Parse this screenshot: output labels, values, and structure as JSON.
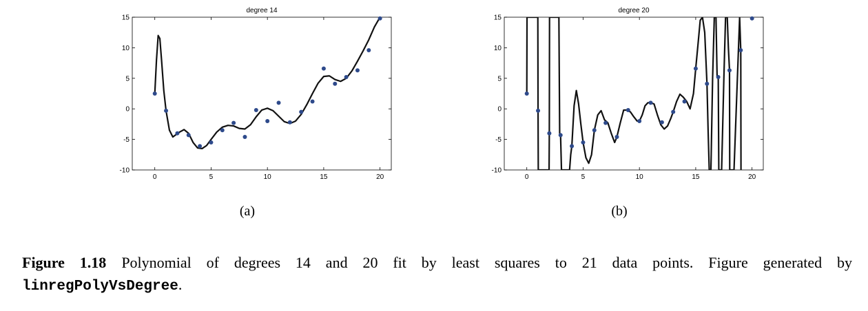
{
  "chart_data": [
    {
      "type": "line",
      "title": "degree 14",
      "xlim": [
        -2,
        21
      ],
      "ylim": [
        -10,
        15
      ],
      "xticks": [
        0,
        5,
        10,
        15,
        20
      ],
      "yticks": [
        -10,
        -5,
        0,
        5,
        10,
        15
      ],
      "grid": false,
      "data_points": {
        "x": [
          0,
          1,
          2,
          3,
          4,
          5,
          6,
          7,
          8,
          9,
          10,
          11,
          12,
          13,
          14,
          15,
          16,
          17,
          18,
          19,
          20
        ],
        "y": [
          2.5,
          -0.3,
          -4.0,
          -4.3,
          -6.1,
          -5.5,
          -3.5,
          -2.3,
          -4.6,
          -0.2,
          -2.0,
          1.0,
          -2.2,
          -0.5,
          1.2,
          6.6,
          4.1,
          5.2,
          6.3,
          9.6,
          14.8
        ]
      },
      "fit_curve": {
        "x": [
          0,
          0.15,
          0.3,
          0.45,
          0.6,
          0.8,
          1.0,
          1.3,
          1.6,
          1.9,
          2.2,
          2.6,
          3.0,
          3.4,
          3.8,
          4.2,
          4.6,
          5.0,
          5.5,
          6.0,
          6.5,
          7.0,
          7.5,
          8.0,
          8.5,
          9.0,
          9.5,
          10.0,
          10.5,
          11.0,
          11.5,
          12.0,
          12.5,
          13.0,
          13.5,
          14.0,
          14.5,
          15.0,
          15.5,
          16.0,
          16.5,
          17.0,
          17.5,
          18.0,
          18.5,
          19.0,
          19.5,
          20.0
        ],
        "y": [
          2.5,
          8.0,
          12.0,
          11.5,
          8.0,
          3.0,
          -0.3,
          -3.5,
          -4.6,
          -4.2,
          -3.8,
          -3.4,
          -4.0,
          -5.5,
          -6.4,
          -6.5,
          -6.0,
          -5.0,
          -3.8,
          -3.0,
          -2.7,
          -2.8,
          -3.2,
          -3.3,
          -2.6,
          -1.3,
          -0.2,
          0.1,
          -0.3,
          -1.2,
          -2.1,
          -2.4,
          -2.0,
          -0.9,
          0.7,
          2.5,
          4.2,
          5.3,
          5.4,
          4.8,
          4.5,
          5.0,
          6.2,
          7.8,
          9.5,
          11.3,
          13.4,
          15.0
        ]
      }
    },
    {
      "type": "line",
      "title": "degree 20",
      "xlim": [
        -2,
        21
      ],
      "ylim": [
        -10,
        15
      ],
      "xticks": [
        0,
        5,
        10,
        15,
        20
      ],
      "yticks": [
        -10,
        -5,
        0,
        5,
        10,
        15
      ],
      "grid": false,
      "data_points": {
        "x": [
          0,
          1,
          2,
          3,
          4,
          5,
          6,
          7,
          8,
          9,
          10,
          11,
          12,
          13,
          14,
          15,
          16,
          17,
          18,
          19,
          20
        ],
        "y": [
          2.5,
          -0.3,
          -4.0,
          -4.3,
          -6.1,
          -5.5,
          -3.5,
          -2.3,
          -4.6,
          -0.2,
          -2.0,
          1.0,
          -2.2,
          -0.5,
          1.2,
          6.6,
          4.1,
          5.2,
          6.3,
          9.6,
          14.8
        ]
      },
      "fit_curve": {
        "x": [
          0,
          0.02,
          0.98,
          1.0,
          1.02,
          1.98,
          2.0,
          2.02,
          2.85,
          2.92,
          3.0,
          3.08,
          3.8,
          3.9,
          4.0,
          4.2,
          4.4,
          4.6,
          4.8,
          5.0,
          5.25,
          5.5,
          5.75,
          6.0,
          6.3,
          6.6,
          6.9,
          7.2,
          7.5,
          7.8,
          8.0,
          8.3,
          8.6,
          8.9,
          9.2,
          9.5,
          9.8,
          10.0,
          10.25,
          10.5,
          10.75,
          11.0,
          11.3,
          11.6,
          11.9,
          12.2,
          12.5,
          12.8,
          13.0,
          13.3,
          13.6,
          13.9,
          14.2,
          14.5,
          14.8,
          15.0,
          15.2,
          15.4,
          15.6,
          15.8,
          16.0,
          16.1,
          16.2,
          16.35,
          16.5,
          16.65,
          16.8,
          16.9,
          17.0,
          17.05,
          17.1,
          17.3,
          17.5,
          17.65,
          17.8,
          17.9,
          18.0,
          18.02,
          18.1,
          18.4,
          18.7,
          18.9,
          19.0,
          19.02
        ],
        "y": [
          2.5,
          15,
          15,
          -0.3,
          -10,
          -10,
          -4.0,
          15,
          15,
          -4.0,
          -4.3,
          -10,
          -10,
          -7.5,
          -6.1,
          0.5,
          3.0,
          0.8,
          -2.5,
          -5.5,
          -8.0,
          -8.9,
          -7.5,
          -3.5,
          -1.0,
          -0.3,
          -1.8,
          -2.3,
          -4.0,
          -5.5,
          -4.6,
          -2.3,
          -0.2,
          -0.2,
          -0.5,
          -1.3,
          -2.0,
          -2.0,
          -1.0,
          0.5,
          1.0,
          1.0,
          0.8,
          -1.0,
          -2.6,
          -3.3,
          -2.8,
          -1.5,
          -0.5,
          1.2,
          2.4,
          1.9,
          1.2,
          0.0,
          2.5,
          6.6,
          10.5,
          14.5,
          15,
          12.5,
          4.1,
          -3.5,
          -10,
          -10,
          5,
          15,
          15,
          5.2,
          5.2,
          -10,
          -10,
          -10,
          5,
          15,
          15,
          10,
          6.3,
          -10,
          -10,
          -10,
          5,
          15,
          9.6,
          -10
        ]
      }
    }
  ],
  "sublabels": {
    "a": "(a)",
    "b": "(b)"
  },
  "caption": {
    "label": "Figure 1.18",
    "text": "Polynomial of degrees 14 and 20 fit by least squares to 21 data points. Figure generated by",
    "code": "linregPolyVsDegree",
    "end": "."
  },
  "colors": {
    "point": "#2e4a8b",
    "curve": "#111111",
    "axis": "#000000"
  }
}
